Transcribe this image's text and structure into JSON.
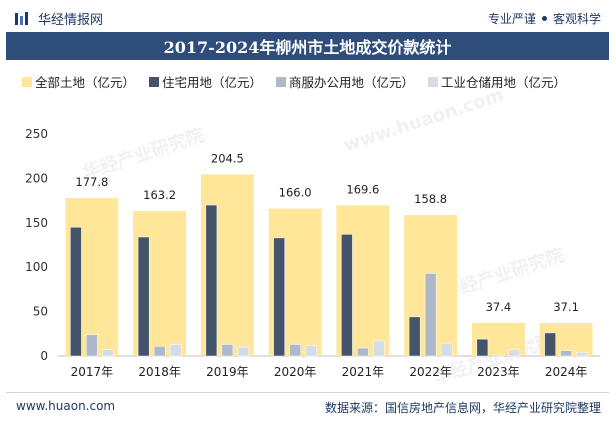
{
  "header": {
    "brand": "华经情报网",
    "tagline_left": "专业严谨",
    "tagline_right": "客观科学"
  },
  "footer": {
    "url": "www.huaon.com",
    "source": "数据来源：国信房地产信息网，华经产业研究院整理"
  },
  "watermarks": [
    "华经产业研究院",
    "www.huaon.com"
  ],
  "colors": {
    "title_bg": "#2e4d7b",
    "total": "#ffe699",
    "residential": "#44546a",
    "commercial": "#adb9ca",
    "industrial": "#d6dce5"
  },
  "chart_data": {
    "type": "bar",
    "title": "2017-2024年柳州市土地成交价款统计",
    "categories": [
      "2017年",
      "2018年",
      "2019年",
      "2020年",
      "2021年",
      "2022年",
      "2023年",
      "2024年"
    ],
    "series": [
      {
        "name": "全部土地（亿元）",
        "values": [
          177.8,
          163.2,
          204.5,
          166.0,
          169.6,
          158.8,
          37.4,
          37.1
        ],
        "labels": [
          "177.8",
          "163.2",
          "204.5",
          "166.0",
          "169.6",
          "158.8",
          "37.4",
          "37.1"
        ]
      },
      {
        "name": "住宅用地（亿元）",
        "values": [
          145,
          134,
          170,
          133,
          137,
          44,
          19,
          26
        ]
      },
      {
        "name": "商服办公用地（亿元）",
        "values": [
          24,
          11,
          13,
          13,
          9,
          93,
          1,
          6
        ]
      },
      {
        "name": "工业仓储用地（亿元）",
        "values": [
          7,
          13,
          10,
          12,
          17,
          14,
          7,
          4
        ]
      }
    ],
    "yticks": [
      "0",
      "50",
      "100",
      "150",
      "200",
      "250"
    ],
    "ylim": [
      0,
      250
    ],
    "legend_position": "top-left",
    "grid": false
  }
}
